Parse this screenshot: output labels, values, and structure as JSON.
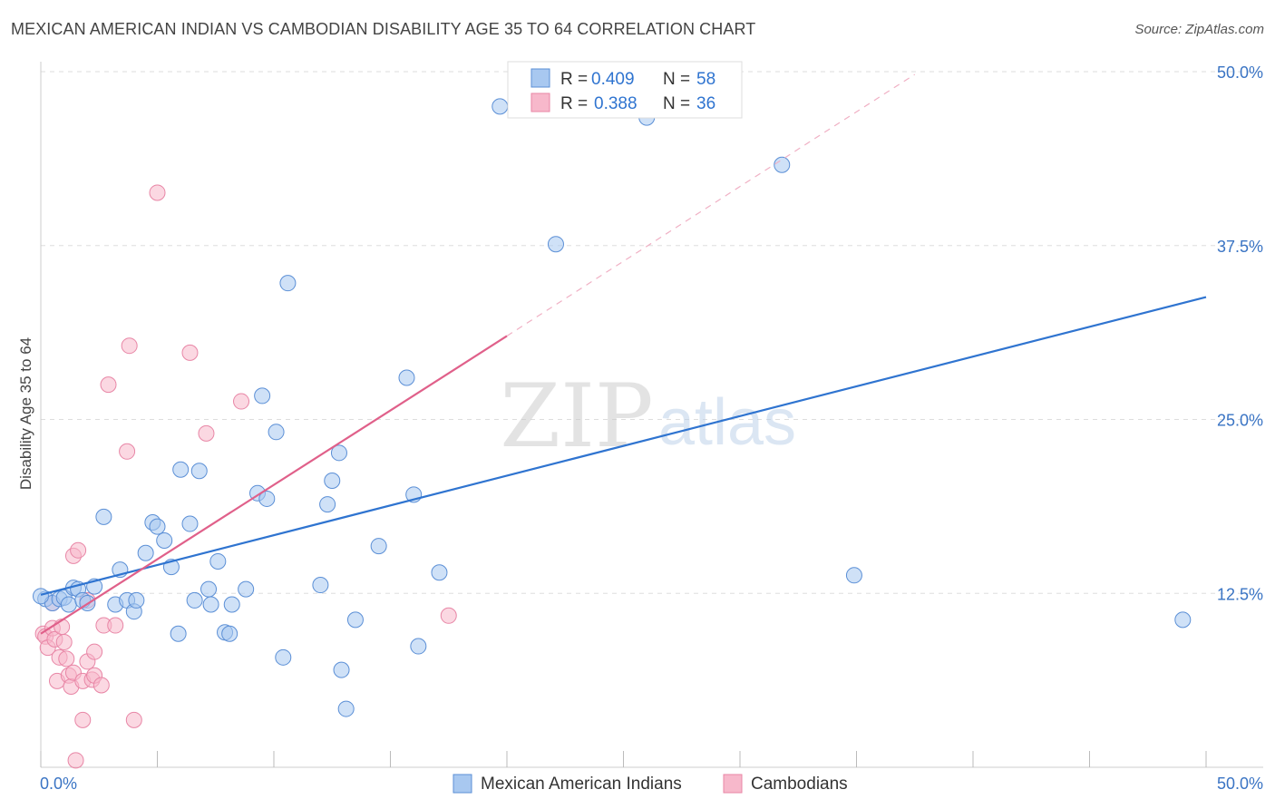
{
  "header": {
    "title": "MEXICAN AMERICAN INDIAN VS CAMBODIAN DISABILITY AGE 35 TO 64 CORRELATION CHART",
    "source": "Source: ZipAtlas.com"
  },
  "watermark": {
    "zip": "ZIP",
    "atlas": "atlas"
  },
  "colors": {
    "blue_fill": "#a8c8f0",
    "blue_stroke": "#5b8fd6",
    "blue_line": "#2f74d0",
    "pink_fill": "#f7b8cb",
    "pink_stroke": "#e886a6",
    "pink_line": "#e0608a",
    "tick_text": "#3a74c4",
    "grid": "#dddddd"
  },
  "legend_top": [
    {
      "r_label": "R = ",
      "r_value": "0.409",
      "n_label": "N = ",
      "n_value": "58"
    },
    {
      "r_label": "R = ",
      "r_value": "0.388",
      "n_label": "N = ",
      "n_value": "36"
    }
  ],
  "chart_data": {
    "type": "scatter",
    "title": "MEXICAN AMERICAN INDIAN VS CAMBODIAN DISABILITY AGE 35 TO 64 CORRELATION CHART",
    "xlabel": "",
    "ylabel": "Disability Age 35 to 64",
    "xlim": [
      0,
      50
    ],
    "ylim": [
      0,
      50
    ],
    "x_tick_labels": [
      "0.0%",
      "50.0%"
    ],
    "y_ticks": [
      12.5,
      25.0,
      37.5,
      50.0
    ],
    "y_tick_labels": [
      "12.5%",
      "25.0%",
      "37.5%",
      "50.0%"
    ],
    "series": [
      {
        "name": "Mexican American Indians",
        "color": "blue",
        "r": 0.409,
        "n": 58,
        "trend": {
          "x": [
            0,
            50
          ],
          "y": [
            12.4,
            33.8
          ]
        },
        "points": [
          [
            0.2,
            12.1
          ],
          [
            0.5,
            11.8
          ],
          [
            0.8,
            12.1
          ],
          [
            1.0,
            12.2
          ],
          [
            1.2,
            11.7
          ],
          [
            1.4,
            12.9
          ],
          [
            1.6,
            12.8
          ],
          [
            1.8,
            12.0
          ],
          [
            2.0,
            11.8
          ],
          [
            2.3,
            13.0
          ],
          [
            2.7,
            18.0
          ],
          [
            3.2,
            11.7
          ],
          [
            3.4,
            14.2
          ],
          [
            3.7,
            12.0
          ],
          [
            4.0,
            11.2
          ],
          [
            4.1,
            12.0
          ],
          [
            4.5,
            15.4
          ],
          [
            4.8,
            17.6
          ],
          [
            5.0,
            17.3
          ],
          [
            5.3,
            16.3
          ],
          [
            5.6,
            14.4
          ],
          [
            5.9,
            9.6
          ],
          [
            6.0,
            21.4
          ],
          [
            6.4,
            17.5
          ],
          [
            6.6,
            12.0
          ],
          [
            6.8,
            21.3
          ],
          [
            7.2,
            12.8
          ],
          [
            7.3,
            11.7
          ],
          [
            7.6,
            14.8
          ],
          [
            7.9,
            9.7
          ],
          [
            8.1,
            9.6
          ],
          [
            8.2,
            11.7
          ],
          [
            8.8,
            12.8
          ],
          [
            9.3,
            19.7
          ],
          [
            9.5,
            26.7
          ],
          [
            9.7,
            19.3
          ],
          [
            10.1,
            24.1
          ],
          [
            10.4,
            7.9
          ],
          [
            10.6,
            34.8
          ],
          [
            12.0,
            13.1
          ],
          [
            12.3,
            18.9
          ],
          [
            12.5,
            20.6
          ],
          [
            12.8,
            22.6
          ],
          [
            12.9,
            7.0
          ],
          [
            13.1,
            4.2
          ],
          [
            13.5,
            10.6
          ],
          [
            14.5,
            15.9
          ],
          [
            15.7,
            28.0
          ],
          [
            16.0,
            19.6
          ],
          [
            16.2,
            8.7
          ],
          [
            17.1,
            14.0
          ],
          [
            19.7,
            47.5
          ],
          [
            22.1,
            37.6
          ],
          [
            26.0,
            46.7
          ],
          [
            31.8,
            43.3
          ],
          [
            34.9,
            13.8
          ],
          [
            49.0,
            10.6
          ],
          [
            0.0,
            12.3
          ]
        ]
      },
      {
        "name": "Cambodians",
        "color": "pink",
        "r": 0.388,
        "n": 36,
        "trend": {
          "x": [
            0,
            20
          ],
          "y": [
            9.6,
            31.0
          ]
        },
        "trend_ext": {
          "x": [
            20,
            37.5
          ],
          "y": [
            31.0,
            49.8
          ]
        },
        "points": [
          [
            0.1,
            9.6
          ],
          [
            0.2,
            9.4
          ],
          [
            0.3,
            8.6
          ],
          [
            0.5,
            11.8
          ],
          [
            0.5,
            10.0
          ],
          [
            0.6,
            9.2
          ],
          [
            0.7,
            6.2
          ],
          [
            0.8,
            7.9
          ],
          [
            0.9,
            10.1
          ],
          [
            1.0,
            9.0
          ],
          [
            1.1,
            7.8
          ],
          [
            1.2,
            6.6
          ],
          [
            1.3,
            5.8
          ],
          [
            1.4,
            6.8
          ],
          [
            1.4,
            15.2
          ],
          [
            1.5,
            0.5
          ],
          [
            1.6,
            15.6
          ],
          [
            1.8,
            3.4
          ],
          [
            1.8,
            6.2
          ],
          [
            2.0,
            12.0
          ],
          [
            2.0,
            7.6
          ],
          [
            2.2,
            6.3
          ],
          [
            2.3,
            8.3
          ],
          [
            2.3,
            6.6
          ],
          [
            2.6,
            5.9
          ],
          [
            2.7,
            10.2
          ],
          [
            2.9,
            27.5
          ],
          [
            3.2,
            10.2
          ],
          [
            3.7,
            22.7
          ],
          [
            3.8,
            30.3
          ],
          [
            4.0,
            3.4
          ],
          [
            5.0,
            41.3
          ],
          [
            6.4,
            29.8
          ],
          [
            7.1,
            24.0
          ],
          [
            8.6,
            26.3
          ],
          [
            17.5,
            10.9
          ]
        ]
      }
    ],
    "legend": [
      "Mexican American Indians",
      "Cambodians"
    ]
  }
}
